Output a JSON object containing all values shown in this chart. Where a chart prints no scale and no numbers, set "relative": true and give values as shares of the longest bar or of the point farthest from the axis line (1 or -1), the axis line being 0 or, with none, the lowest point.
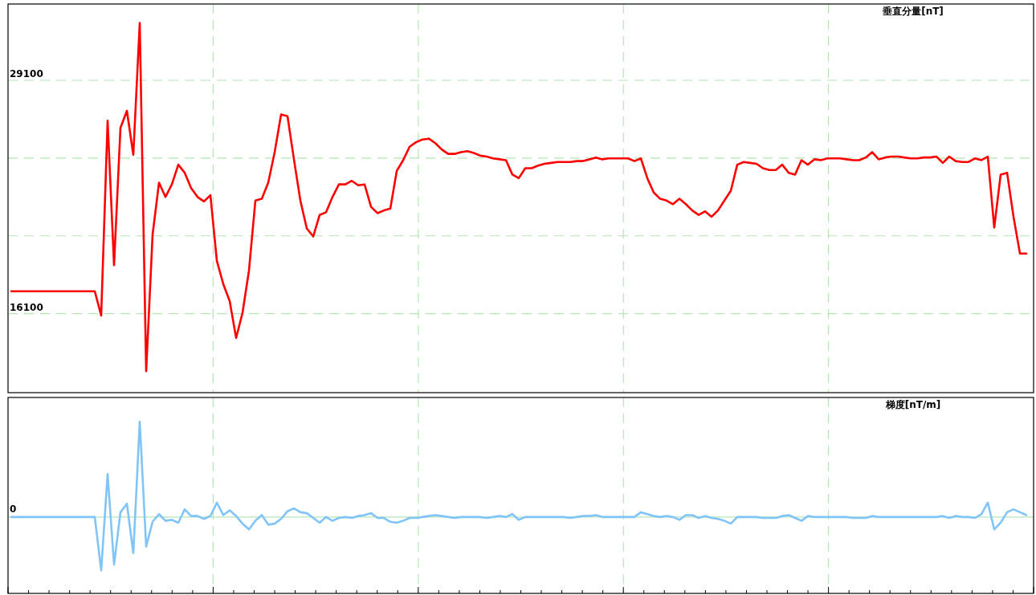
{
  "chart_data": [
    {
      "type": "line",
      "ylabel": "垂直分量[nT]",
      "color": "#ff0000",
      "grid": true,
      "tick_labels": "y",
      "ylim": [
        11700,
        33350
      ],
      "yticks": [
        16100,
        {
          "value": 20433,
          "label": null
        },
        {
          "value": 24767,
          "label": null
        },
        29100
      ],
      "categories": [
        null,
        null,
        null,
        null,
        null,
        null,
        null,
        null,
        null,
        null,
        null,
        null,
        null,
        null,
        null,
        null,
        null,
        null,
        null,
        null,
        null,
        null,
        null,
        null,
        null,
        null,
        null,
        null,
        null,
        null,
        null,
        null,
        null,
        null,
        null,
        null,
        null,
        null,
        null,
        null,
        null,
        null,
        null,
        null,
        null,
        null,
        null,
        null,
        null,
        null,
        null,
        null,
        null,
        null,
        null,
        null,
        null,
        null,
        null,
        null,
        null,
        null,
        null,
        null,
        null,
        null,
        null,
        null,
        null,
        null,
        null,
        null,
        null,
        null,
        null,
        null,
        null,
        null,
        null,
        null,
        null,
        null,
        null,
        null,
        null,
        null,
        null,
        null,
        null,
        null,
        null,
        null,
        null,
        null,
        null,
        null,
        null,
        null,
        null,
        null,
        null,
        null,
        null,
        null,
        null,
        null,
        null,
        null,
        null,
        null,
        null,
        null,
        null,
        null,
        null,
        null,
        null,
        null,
        null,
        null,
        null,
        null,
        null,
        null,
        null,
        null,
        null,
        null,
        null,
        null,
        null,
        null,
        null,
        null,
        null,
        null,
        null,
        null,
        null,
        null,
        null,
        null,
        null,
        null,
        null,
        null,
        null,
        null,
        null,
        null,
        null,
        null,
        null,
        null,
        null,
        null,
        null,
        null,
        null
      ],
      "values": [
        17350,
        17350,
        17350,
        17350,
        17350,
        17350,
        17350,
        17350,
        17350,
        17350,
        17350,
        17350,
        17350,
        17350,
        16000,
        26850,
        18800,
        26450,
        27400,
        24950,
        32300,
        12900,
        20500,
        23400,
        22600,
        23300,
        24400,
        23950,
        23100,
        22600,
        22350,
        22700,
        19050,
        17750,
        16800,
        14750,
        16150,
        18500,
        22400,
        22500,
        23400,
        25100,
        27200,
        27100,
        24700,
        22400,
        20850,
        20400,
        21600,
        21750,
        22600,
        23300,
        23300,
        23500,
        23250,
        23300,
        22050,
        21700,
        21850,
        21950,
        24050,
        24650,
        25400,
        25650,
        25800,
        25850,
        25600,
        25250,
        25000,
        25000,
        25100,
        25150,
        25050,
        24900,
        24850,
        24750,
        24700,
        24650,
        23850,
        23650,
        24200,
        24200,
        24350,
        24450,
        24500,
        24550,
        24550,
        24550,
        24600,
        24600,
        24700,
        24800,
        24700,
        24750,
        24750,
        24750,
        24750,
        24600,
        24750,
        23650,
        22850,
        22500,
        22400,
        22200,
        22500,
        22200,
        21850,
        21600,
        21800,
        21500,
        21850,
        22400,
        22950,
        24400,
        24550,
        24500,
        24450,
        24200,
        24100,
        24100,
        24400,
        23950,
        23850,
        24650,
        24400,
        24700,
        24650,
        24750,
        24750,
        24750,
        24700,
        24650,
        24650,
        24800,
        25100,
        24700,
        24800,
        24850,
        24850,
        24800,
        24750,
        24750,
        24800,
        24800,
        24850,
        24500,
        24850,
        24600,
        24550,
        24550,
        24750,
        24650,
        24850,
        20900,
        23850,
        23950,
        21500,
        19450,
        19450
      ]
    },
    {
      "type": "line",
      "ylabel": "梯度[nT/m]",
      "color": "#80c4f8",
      "grid": true,
      "tick_labels": false,
      "relative": true,
      "annotations": [
        {
          "text": "0",
          "y": 0
        }
      ],
      "ref_lines": [
        {
          "axis": "y",
          "value": 0,
          "color": "#b4e6b4"
        }
      ],
      "categories": [
        null,
        null,
        null,
        null,
        null,
        null,
        null,
        null,
        null,
        null,
        null,
        null,
        null,
        null,
        null,
        null,
        null,
        null,
        null,
        null,
        null,
        null,
        null,
        null,
        null,
        null,
        null,
        null,
        null,
        null,
        null,
        null,
        null,
        null,
        null,
        null,
        null,
        null,
        null,
        null,
        null,
        null,
        null,
        null,
        null,
        null,
        null,
        null,
        null,
        null,
        null,
        null,
        null,
        null,
        null,
        null,
        null,
        null,
        null,
        null,
        null,
        null,
        null,
        null,
        null,
        null,
        null,
        null,
        null,
        null,
        null,
        null,
        null,
        null,
        null,
        null,
        null,
        null,
        null,
        null,
        null,
        null,
        null,
        null,
        null,
        null,
        null,
        null,
        null,
        null,
        null,
        null,
        null,
        null,
        null,
        null,
        null,
        null,
        null,
        null,
        null,
        null,
        null,
        null,
        null,
        null,
        null,
        null,
        null,
        null,
        null,
        null,
        null,
        null,
        null,
        null,
        null,
        null,
        null,
        null,
        null,
        null,
        null,
        null,
        null,
        null,
        null,
        null,
        null,
        null,
        null,
        null,
        null,
        null,
        null,
        null,
        null,
        null,
        null,
        null,
        null,
        null,
        null,
        null,
        null,
        null,
        null,
        null,
        null,
        null,
        null,
        null,
        null,
        null,
        null,
        null,
        null,
        null,
        null
      ],
      "values": [
        0,
        0,
        0,
        0,
        0,
        0,
        0,
        0,
        0,
        0,
        0,
        0,
        0,
        0,
        -0.56,
        0.45,
        -0.5,
        0.05,
        0.14,
        -0.38,
        1,
        -0.31,
        -0.05,
        0.03,
        -0.04,
        -0.03,
        -0.06,
        0.08,
        0.01,
        0.01,
        -0.02,
        0.01,
        0.15,
        0.02,
        0.07,
        0.01,
        -0.07,
        -0.13,
        -0.04,
        0.02,
        -0.08,
        -0.07,
        -0.02,
        0.06,
        0.09,
        0.05,
        0.04,
        -0.01,
        -0.06,
        0,
        -0.04,
        -0.01,
        0,
        -0.01,
        0.01,
        0.02,
        0.04,
        -0.01,
        -0.01,
        -0.05,
        -0.06,
        -0.04,
        -0.01,
        -0.01,
        0,
        0.01,
        0.02,
        0.01,
        0,
        -0.01,
        0,
        0,
        0,
        0,
        -0.01,
        0,
        0.01,
        0,
        0.03,
        -0.03,
        0,
        0,
        0,
        0,
        0,
        0,
        0,
        -0.01,
        0,
        0.01,
        0.01,
        0.02,
        0,
        0,
        0,
        0,
        0,
        0,
        0.05,
        0.03,
        0.01,
        0,
        0.01,
        0,
        -0.03,
        0.02,
        0.02,
        -0.01,
        0.01,
        -0.01,
        -0.02,
        -0.04,
        -0.07,
        0,
        0,
        0,
        0,
        -0.01,
        -0.01,
        -0.01,
        0.01,
        0.02,
        -0.01,
        -0.04,
        0.01,
        0,
        0,
        0,
        0,
        0,
        0,
        -0.01,
        -0.01,
        -0.01,
        0.01,
        0,
        0,
        0,
        0,
        0,
        0,
        0,
        0,
        0,
        0,
        0.01,
        -0.01,
        0.01,
        0,
        0,
        -0.01,
        0.03,
        0.15,
        -0.13,
        -0.06,
        0.05,
        0.08,
        0.05,
        0.02
      ]
    }
  ]
}
